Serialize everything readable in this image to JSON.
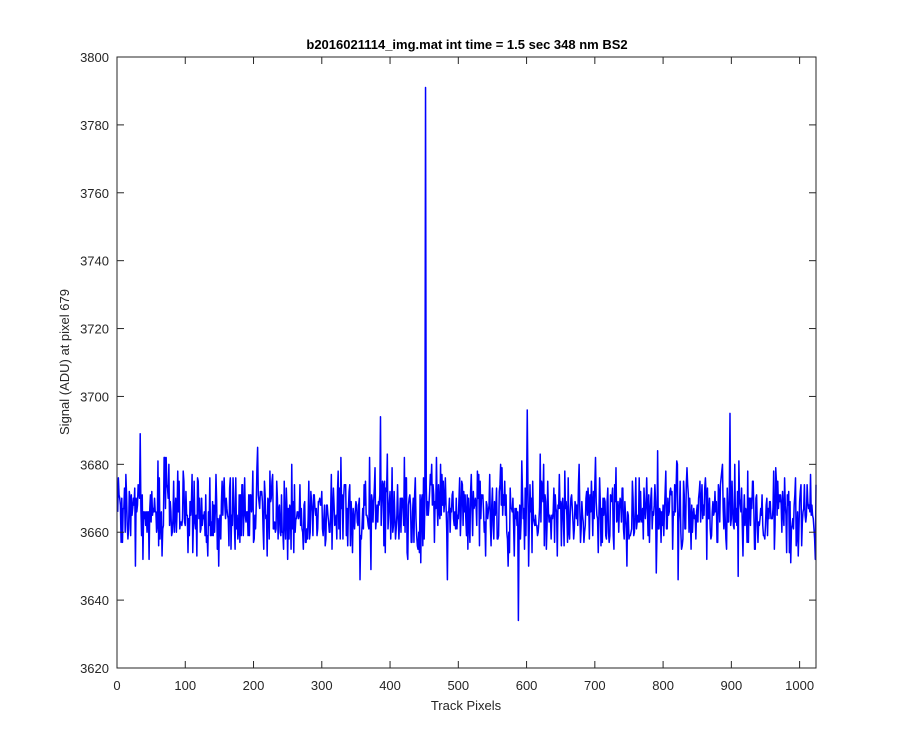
{
  "chart_data": {
    "type": "line",
    "title": "b2016021114_img.mat int time = 1.5 sec  348 nm BS2",
    "xlabel": "Track Pixels",
    "ylabel": "Signal (ADU) at pixel 679",
    "xlim": [
      0,
      1024
    ],
    "ylim": [
      3620,
      3800
    ],
    "xticks": [
      0,
      100,
      200,
      300,
      400,
      500,
      600,
      700,
      800,
      900,
      1000
    ],
    "yticks": [
      3620,
      3640,
      3660,
      3680,
      3700,
      3720,
      3740,
      3760,
      3780,
      3800
    ],
    "grid": false,
    "series": [
      {
        "color": "#0000ff",
        "n_points": 1024,
        "baseline_mean": 3666,
        "noise_min_typical": 3645,
        "noise_max_typical": 3688,
        "notable_points": [
          {
            "x": 33,
            "y": 3689
          },
          {
            "x": 385,
            "y": 3694
          },
          {
            "x": 451,
            "y": 3791
          },
          {
            "x": 587,
            "y": 3634
          },
          {
            "x": 600,
            "y": 3696
          },
          {
            "x": 897,
            "y": 3695
          }
        ]
      }
    ]
  }
}
